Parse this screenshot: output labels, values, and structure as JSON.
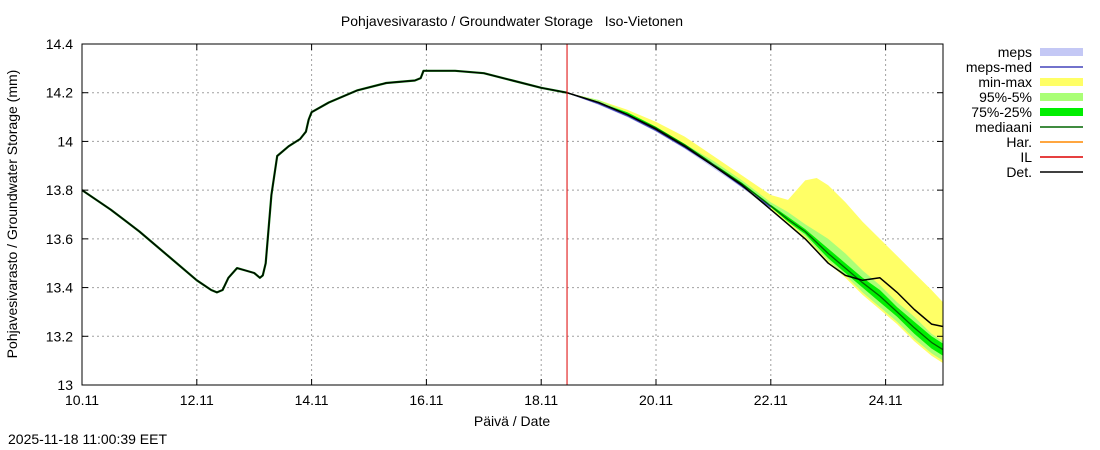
{
  "timestamp": "2025-11-18 11:00:39 EET",
  "chart_data": {
    "type": "line",
    "title": "Pohjavesivarasto / Groundwater Storage   Iso-Vietonen",
    "xlabel": "Päivä / Date",
    "ylabel": "Pohjavesivarasto / Groundwater Storage (mm)",
    "xlim": [
      0,
      15
    ],
    "ylim": [
      13.0,
      14.4
    ],
    "x_ticks": [
      {
        "x": 0,
        "label": "10.11"
      },
      {
        "x": 2,
        "label": "12.11"
      },
      {
        "x": 4,
        "label": "14.11"
      },
      {
        "x": 6,
        "label": "16.11"
      },
      {
        "x": 8,
        "label": "18.11"
      },
      {
        "x": 10,
        "label": "20.11"
      },
      {
        "x": 12,
        "label": "22.11"
      },
      {
        "x": 14,
        "label": "24.11"
      }
    ],
    "y_ticks": [
      {
        "y": 13.0,
        "label": "13"
      },
      {
        "y": 13.2,
        "label": "13.2"
      },
      {
        "y": 13.4,
        "label": "13.4"
      },
      {
        "y": 13.6,
        "label": "13.6"
      },
      {
        "y": 13.8,
        "label": "13.8"
      },
      {
        "y": 14.0,
        "label": "14"
      },
      {
        "y": 14.2,
        "label": "14.2"
      },
      {
        "y": 14.4,
        "label": "14.4"
      }
    ],
    "grid": true,
    "legend_position": "outside-right",
    "forecast_start_x": 8.45,
    "colors": {
      "meps": "#c4c8f5",
      "meps_med": "#4444bb",
      "minmax": "#ffff66",
      "p95_5": "#aaff77",
      "p75_25": "#00ee00",
      "mediaani": "#006600",
      "har": "#ff8800",
      "il": "#dd0000",
      "det": "#000000"
    },
    "legend": [
      {
        "key": "meps",
        "label": "meps",
        "style": "band"
      },
      {
        "key": "meps_med",
        "label": "meps-med",
        "style": "line"
      },
      {
        "key": "minmax",
        "label": "min-max",
        "style": "band"
      },
      {
        "key": "p95_5",
        "label": "95%-5%",
        "style": "band"
      },
      {
        "key": "p75_25",
        "label": "75%-25%",
        "style": "band"
      },
      {
        "key": "mediaani",
        "label": "mediaani",
        "style": "line"
      },
      {
        "key": "har",
        "label": "Har.",
        "style": "line"
      },
      {
        "key": "il",
        "label": "IL",
        "style": "line"
      },
      {
        "key": "det",
        "label": "Det.",
        "style": "line"
      }
    ],
    "observed": {
      "x": [
        0,
        0.5,
        1,
        1.5,
        2,
        2.25,
        2.35,
        2.45,
        2.55,
        2.7,
        2.85,
        3.0,
        3.1,
        3.15,
        3.2,
        3.3,
        3.4,
        3.6,
        3.8,
        3.9,
        3.95,
        4.0,
        4.3,
        4.8,
        5.3,
        5.8,
        5.9,
        5.95,
        6.0,
        6.5,
        7.0,
        7.5,
        8.0,
        8.45
      ],
      "y": [
        13.8,
        13.72,
        13.63,
        13.53,
        13.43,
        13.39,
        13.38,
        13.39,
        13.44,
        13.48,
        13.47,
        13.46,
        13.44,
        13.45,
        13.5,
        13.78,
        13.94,
        13.98,
        14.01,
        14.04,
        14.09,
        14.12,
        14.16,
        14.21,
        14.24,
        14.25,
        14.26,
        14.29,
        14.29,
        14.29,
        14.28,
        14.25,
        14.22,
        14.2
      ]
    },
    "forecast_x": [
      8.45,
      9,
      9.5,
      10,
      10.5,
      11,
      11.5,
      12,
      12.3,
      12.6,
      12.8,
      13,
      13.3,
      13.6,
      13.9,
      14.2,
      14.5,
      14.8,
      15.0
    ],
    "minmax_band": {
      "low": [
        14.2,
        14.16,
        14.11,
        14.05,
        13.98,
        13.9,
        13.81,
        13.72,
        13.66,
        13.6,
        13.55,
        13.5,
        13.44,
        13.37,
        13.31,
        13.25,
        13.18,
        13.12,
        13.09
      ],
      "high": [
        14.2,
        14.17,
        14.13,
        14.08,
        14.02,
        13.94,
        13.86,
        13.78,
        13.76,
        13.84,
        13.85,
        13.82,
        13.75,
        13.67,
        13.6,
        13.53,
        13.46,
        13.39,
        13.34
      ]
    },
    "p95_5_band": {
      "low": [
        14.2,
        14.16,
        14.11,
        14.05,
        13.98,
        13.9,
        13.82,
        13.73,
        13.67,
        13.61,
        13.56,
        13.51,
        13.45,
        13.38,
        13.32,
        13.26,
        13.19,
        13.13,
        13.1
      ],
      "high": [
        14.2,
        14.17,
        14.12,
        14.06,
        13.99,
        13.92,
        13.84,
        13.75,
        13.71,
        13.66,
        13.63,
        13.6,
        13.54,
        13.47,
        13.41,
        13.34,
        13.28,
        13.21,
        13.18
      ]
    },
    "p75_25_band": {
      "low": [
        14.2,
        14.16,
        14.11,
        14.05,
        13.98,
        13.9,
        13.82,
        13.73,
        13.67,
        13.62,
        13.57,
        13.52,
        13.46,
        13.4,
        13.34,
        13.28,
        13.21,
        13.15,
        13.12
      ],
      "high": [
        14.2,
        14.16,
        14.12,
        14.06,
        13.99,
        13.91,
        13.83,
        13.74,
        13.69,
        13.64,
        13.6,
        13.56,
        13.5,
        13.44,
        13.39,
        13.32,
        13.26,
        13.2,
        13.17
      ]
    },
    "meps_band": {
      "low": [
        14.2,
        14.15,
        14.1,
        14.04,
        13.97,
        13.89,
        13.81,
        13.72
      ],
      "high": [
        14.2,
        14.16,
        14.11,
        14.05,
        13.98,
        13.91,
        13.82,
        13.74
      ]
    },
    "meps_med": [
      14.2,
      14.155,
      14.105,
      14.045,
      13.975,
      13.9,
      13.815,
      13.73
    ],
    "mediaani": [
      14.2,
      14.16,
      14.11,
      14.055,
      13.985,
      13.905,
      13.825,
      13.735,
      13.68,
      13.63,
      13.585,
      13.54,
      13.48,
      13.42,
      13.365,
      13.3,
      13.235,
      13.175,
      13.145
    ],
    "det": [
      14.2,
      14.16,
      14.11,
      14.05,
      13.98,
      13.9,
      13.82,
      13.72,
      13.66,
      13.6,
      13.55,
      13.5,
      13.45,
      13.43,
      13.44,
      13.38,
      13.31,
      13.25,
      13.24
    ]
  }
}
